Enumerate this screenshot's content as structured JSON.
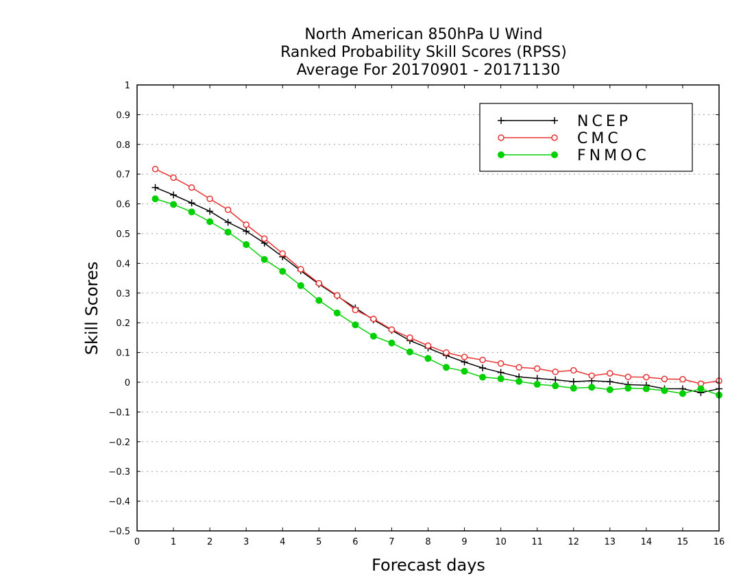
{
  "chart_data": {
    "type": "line",
    "title": [
      "North American 850hPa U Wind",
      "Ranked Probability Skill Scores (RPSS)",
      "Average For 20170901 - 20171130"
    ],
    "xlabel": "Forecast days",
    "ylabel": "Skill Scores",
    "xlim": [
      0,
      16
    ],
    "ylim": [
      -0.5,
      1
    ],
    "xticks": [
      "0",
      "1",
      "2",
      "3",
      "4",
      "5",
      "6",
      "7",
      "8",
      "9",
      "10",
      "11",
      "12",
      "13",
      "14",
      "15",
      "16"
    ],
    "yticks": [
      "1",
      "0.9",
      "0.8",
      "0.7",
      "0.6",
      "0.5",
      "0.4",
      "0.3",
      "0.2",
      "0.1",
      "0",
      "−0.1",
      "−0.2",
      "−0.3",
      "−0.4",
      "−0.5"
    ],
    "grid": "horizontal dotted",
    "legend_position": "top-right",
    "x": [
      0.5,
      1,
      1.5,
      2,
      2.5,
      3,
      3.5,
      4,
      4.5,
      5,
      5.5,
      6,
      6.5,
      7,
      7.5,
      8,
      8.5,
      9,
      9.5,
      10,
      10.5,
      11,
      11.5,
      12,
      12.5,
      13,
      13.5,
      14,
      14.5,
      15,
      15.5,
      16
    ],
    "series": [
      {
        "name": "NCEP",
        "color": "#000000",
        "marker": "plus",
        "values": [
          0.655,
          0.63,
          0.603,
          0.575,
          0.538,
          0.508,
          0.468,
          0.422,
          0.375,
          0.33,
          0.29,
          0.25,
          0.21,
          0.175,
          0.14,
          0.115,
          0.09,
          0.068,
          0.048,
          0.033,
          0.018,
          0.013,
          0.008,
          0.002,
          0.005,
          0.002,
          -0.008,
          -0.01,
          -0.022,
          -0.022,
          -0.035,
          -0.022
        ]
      },
      {
        "name": "CMC",
        "color": "#e83030",
        "marker": "open-circle",
        "values": [
          0.717,
          0.688,
          0.655,
          0.617,
          0.58,
          0.53,
          0.483,
          0.433,
          0.38,
          0.333,
          0.292,
          0.243,
          0.213,
          0.177,
          0.15,
          0.123,
          0.1,
          0.085,
          0.075,
          0.063,
          0.05,
          0.046,
          0.035,
          0.04,
          0.022,
          0.03,
          0.018,
          0.017,
          0.011,
          0.01,
          -0.005,
          0.005
        ]
      },
      {
        "name": "FNMOC",
        "color": "#00d000",
        "marker": "filled-circle",
        "values": [
          0.617,
          0.598,
          0.573,
          0.54,
          0.505,
          0.463,
          0.413,
          0.373,
          0.325,
          0.275,
          0.233,
          0.193,
          0.155,
          0.132,
          0.102,
          0.08,
          0.05,
          0.037,
          0.017,
          0.012,
          0.003,
          -0.007,
          -0.012,
          -0.02,
          -0.017,
          -0.025,
          -0.02,
          -0.022,
          -0.028,
          -0.038,
          -0.022,
          -0.043
        ]
      }
    ]
  }
}
